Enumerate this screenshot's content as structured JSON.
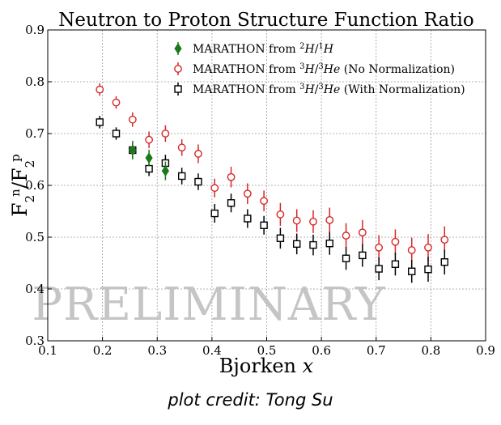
{
  "chart_data": {
    "type": "scatter",
    "title": "Neutron to Proton Structure Function Ratio",
    "xlabel": "Bjorken x",
    "ylabel": "F2n/F2p",
    "xlim": [
      0.1,
      0.9
    ],
    "ylim": [
      0.3,
      0.9
    ],
    "xticks": [
      "0.1",
      "0.2",
      "0.3",
      "0.4",
      "0.5",
      "0.6",
      "0.7",
      "0.8",
      "0.9"
    ],
    "yticks": [
      "0.3",
      "0.4",
      "0.5",
      "0.6",
      "0.7",
      "0.8",
      "0.9"
    ],
    "grid": true,
    "legend_position": "top-right",
    "watermark": "PRELIMINARY",
    "series": [
      {
        "name": "MARATHON from 2H/1H",
        "marker": "diamond",
        "color": "#1a7a1a",
        "points": [
          {
            "x": 0.255,
            "y": 0.668,
            "err": 0.018
          },
          {
            "x": 0.285,
            "y": 0.653,
            "err": 0.016
          },
          {
            "x": 0.315,
            "y": 0.628,
            "err": 0.018
          }
        ]
      },
      {
        "name": "MARATHON from 3H/3He (No Normalization)",
        "marker": "circle",
        "color": "#d62728",
        "points": [
          {
            "x": 0.195,
            "y": 0.785,
            "err": 0.012
          },
          {
            "x": 0.225,
            "y": 0.76,
            "err": 0.012
          },
          {
            "x": 0.255,
            "y": 0.727,
            "err": 0.014
          },
          {
            "x": 0.285,
            "y": 0.688,
            "err": 0.016
          },
          {
            "x": 0.315,
            "y": 0.7,
            "err": 0.016
          },
          {
            "x": 0.345,
            "y": 0.673,
            "err": 0.016
          },
          {
            "x": 0.375,
            "y": 0.661,
            "err": 0.018
          },
          {
            "x": 0.405,
            "y": 0.595,
            "err": 0.018
          },
          {
            "x": 0.435,
            "y": 0.616,
            "err": 0.02
          },
          {
            "x": 0.465,
            "y": 0.584,
            "err": 0.02
          },
          {
            "x": 0.495,
            "y": 0.57,
            "err": 0.02
          },
          {
            "x": 0.525,
            "y": 0.544,
            "err": 0.022
          },
          {
            "x": 0.555,
            "y": 0.532,
            "err": 0.022
          },
          {
            "x": 0.585,
            "y": 0.53,
            "err": 0.022
          },
          {
            "x": 0.615,
            "y": 0.533,
            "err": 0.024
          },
          {
            "x": 0.645,
            "y": 0.503,
            "err": 0.024
          },
          {
            "x": 0.675,
            "y": 0.509,
            "err": 0.024
          },
          {
            "x": 0.705,
            "y": 0.48,
            "err": 0.024
          },
          {
            "x": 0.735,
            "y": 0.491,
            "err": 0.024
          },
          {
            "x": 0.765,
            "y": 0.475,
            "err": 0.024
          },
          {
            "x": 0.795,
            "y": 0.48,
            "err": 0.026
          },
          {
            "x": 0.825,
            "y": 0.495,
            "err": 0.026
          }
        ]
      },
      {
        "name": "MARATHON from 3H/3He (With Normalization)",
        "marker": "square",
        "color": "#000000",
        "points": [
          {
            "x": 0.195,
            "y": 0.722,
            "err": 0.012
          },
          {
            "x": 0.225,
            "y": 0.7,
            "err": 0.012
          },
          {
            "x": 0.255,
            "y": 0.668,
            "err": 0.014
          },
          {
            "x": 0.285,
            "y": 0.632,
            "err": 0.014
          },
          {
            "x": 0.315,
            "y": 0.643,
            "err": 0.016
          },
          {
            "x": 0.345,
            "y": 0.618,
            "err": 0.016
          },
          {
            "x": 0.375,
            "y": 0.607,
            "err": 0.016
          },
          {
            "x": 0.405,
            "y": 0.546,
            "err": 0.018
          },
          {
            "x": 0.435,
            "y": 0.566,
            "err": 0.018
          },
          {
            "x": 0.465,
            "y": 0.536,
            "err": 0.018
          },
          {
            "x": 0.495,
            "y": 0.523,
            "err": 0.018
          },
          {
            "x": 0.525,
            "y": 0.498,
            "err": 0.02
          },
          {
            "x": 0.555,
            "y": 0.487,
            "err": 0.02
          },
          {
            "x": 0.585,
            "y": 0.485,
            "err": 0.02
          },
          {
            "x": 0.615,
            "y": 0.488,
            "err": 0.022
          },
          {
            "x": 0.645,
            "y": 0.459,
            "err": 0.022
          },
          {
            "x": 0.675,
            "y": 0.465,
            "err": 0.022
          },
          {
            "x": 0.705,
            "y": 0.439,
            "err": 0.022
          },
          {
            "x": 0.735,
            "y": 0.448,
            "err": 0.022
          },
          {
            "x": 0.765,
            "y": 0.434,
            "err": 0.022
          },
          {
            "x": 0.795,
            "y": 0.438,
            "err": 0.024
          },
          {
            "x": 0.825,
            "y": 0.452,
            "err": 0.024
          }
        ]
      }
    ]
  },
  "legend": {
    "items": [
      {
        "prefix": "MARATHON from ",
        "sup1": "2",
        "a": "H",
        "sep": "/",
        "sup2": "1",
        "b": "H",
        "suffix": ""
      },
      {
        "prefix": "MARATHON from ",
        "sup1": "3",
        "a": "H",
        "sep": "/",
        "sup2": "3",
        "b": "He",
        "suffix": " (No Normalization)"
      },
      {
        "prefix": "MARATHON from ",
        "sup1": "3",
        "a": "H",
        "sep": "/",
        "sup2": "3",
        "b": "He",
        "suffix": " (With Normalization)"
      }
    ]
  },
  "ylabel_parts": {
    "base1": "F",
    "sub1": "2",
    "sup1": "n",
    "slash": "/",
    "base2": "F",
    "sub2": "2",
    "sup2": "p"
  },
  "xlabel_parts": {
    "text": "Bjorken ",
    "var": "x"
  },
  "credit": "plot credit: Tong Su"
}
